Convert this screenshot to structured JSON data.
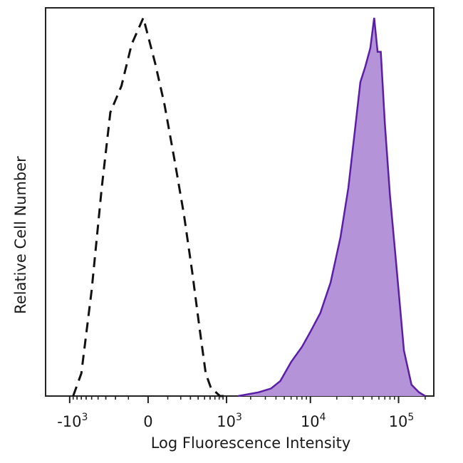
{
  "chart_data": {
    "type": "area",
    "xlabel": "Log Fluorescence Intensity",
    "ylabel": "Relative Cell Number",
    "x_scale": "biexponential",
    "x_ticks": [
      {
        "value": -1000,
        "base": "-10",
        "exp": "3"
      },
      {
        "value": 0,
        "base": "0",
        "exp": ""
      },
      {
        "value": 1000,
        "base": "10",
        "exp": "3"
      },
      {
        "value": 10000,
        "base": "10",
        "exp": "4"
      },
      {
        "value": 100000,
        "base": "10",
        "exp": "5"
      }
    ],
    "xlim": [
      -2000,
      250000
    ],
    "ylim": [
      0,
      1
    ],
    "grid": false,
    "series": [
      {
        "style": "dashed-outline",
        "color": "#111111",
        "x": [
          -900,
          -700,
          -500,
          -350,
          -250,
          -150,
          -80,
          -20,
          30,
          80,
          150,
          230,
          320,
          420,
          520,
          620,
          720,
          820,
          1000
        ],
        "y": [
          0.0,
          0.06,
          0.28,
          0.55,
          0.75,
          0.82,
          0.93,
          1.0,
          0.88,
          0.77,
          0.62,
          0.48,
          0.33,
          0.18,
          0.06,
          0.02,
          0.01,
          0.0,
          0.0
        ]
      },
      {
        "style": "filled",
        "color": "#5a1fa6",
        "fill": "#b493d8",
        "x": [
          1400,
          2500,
          3500,
          4500,
          6000,
          8000,
          10000,
          13000,
          17000,
          22000,
          27000,
          32000,
          37000,
          42000,
          48000,
          53000,
          58000,
          63000,
          70000,
          80000,
          95000,
          115000,
          140000,
          170000,
          200000
        ],
        "y": [
          0.0,
          0.01,
          0.02,
          0.04,
          0.09,
          0.13,
          0.17,
          0.22,
          0.3,
          0.42,
          0.55,
          0.7,
          0.83,
          0.87,
          0.92,
          1.0,
          0.91,
          0.91,
          0.72,
          0.53,
          0.34,
          0.12,
          0.03,
          0.01,
          0.0
        ]
      }
    ]
  }
}
